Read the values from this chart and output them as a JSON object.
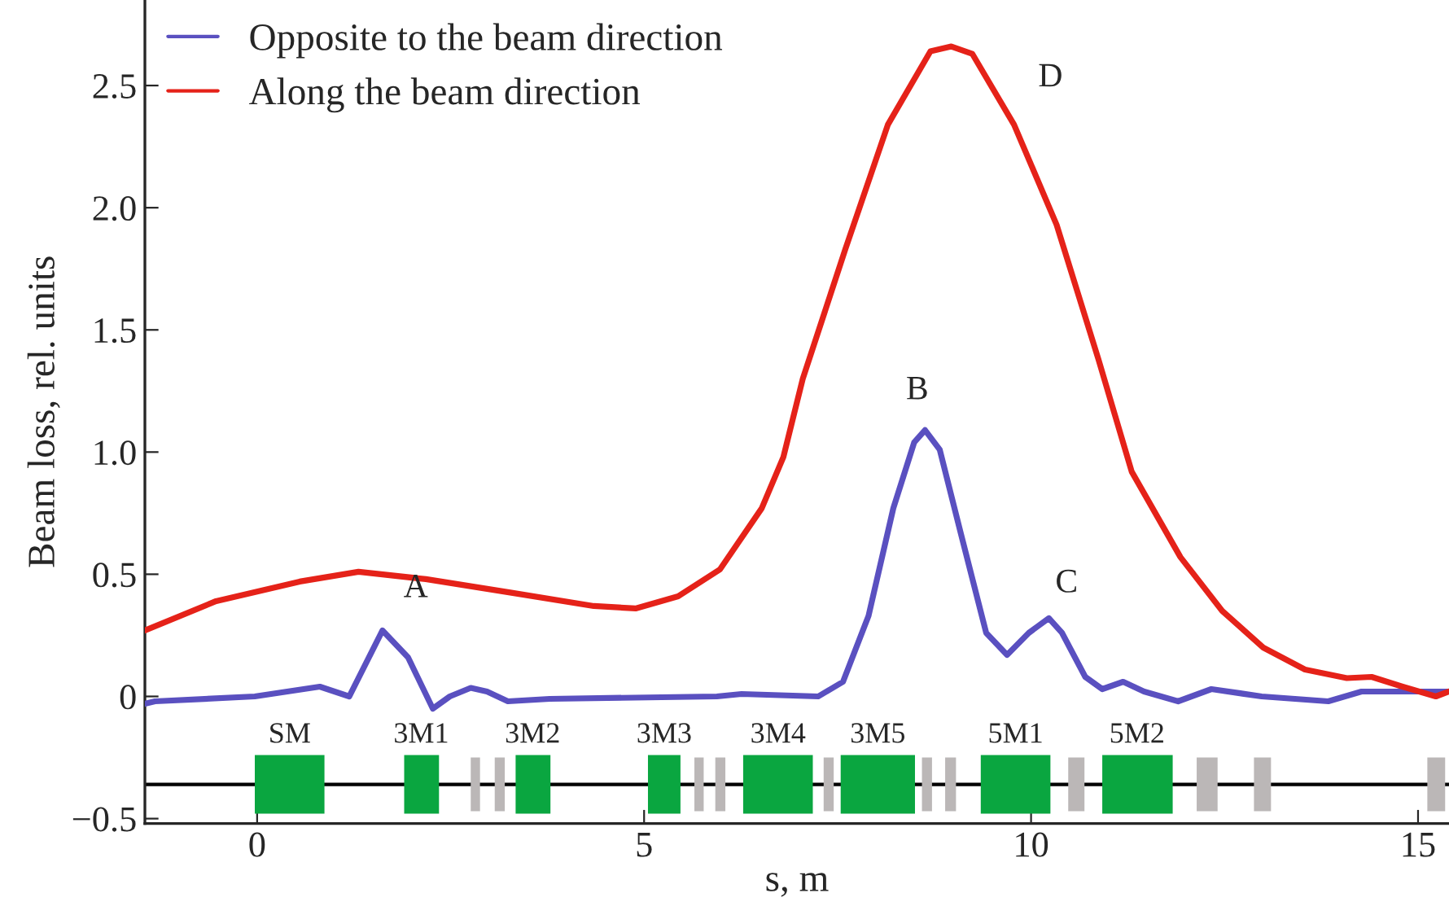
{
  "chart_data": {
    "type": "line",
    "xlabel": "s, m",
    "ylabel": "Beam loss, rel. units",
    "xlim": [
      -1.45,
      15.4
    ],
    "ylim": [
      -0.52,
      2.85
    ],
    "xticks": [
      0,
      5,
      10,
      15
    ],
    "yticks": [
      {
        "value": -0.5,
        "label": "−0.5"
      },
      {
        "value": 0,
        "label": "0"
      },
      {
        "value": 0.5,
        "label": "0.5"
      },
      {
        "value": 1.0,
        "label": "1.0"
      },
      {
        "value": 1.5,
        "label": "1.5"
      },
      {
        "value": 2.0,
        "label": "2.0"
      },
      {
        "value": 2.5,
        "label": "2.5"
      }
    ],
    "grid": false,
    "legend": "top left",
    "marker": "none",
    "line_style": "solid",
    "series": [
      {
        "name": "Opposite to the beam direction",
        "color": "#5a50c0",
        "x": [
          -1.45,
          -1.32,
          -0.03,
          0.81,
          1.19,
          1.62,
          1.95,
          2.27,
          2.49,
          2.76,
          2.97,
          3.24,
          3.78,
          5.94,
          6.26,
          7.25,
          7.57,
          7.9,
          8.22,
          8.49,
          8.63,
          8.82,
          9.09,
          9.42,
          9.69,
          9.97,
          10.23,
          10.4,
          10.7,
          10.92,
          11.19,
          11.46,
          11.9,
          12.33,
          12.98,
          13.84,
          14.27,
          15.23,
          15.4
        ],
        "values": [
          -0.03,
          -0.02,
          0.0,
          0.04,
          0.0,
          0.27,
          0.16,
          -0.05,
          0.0,
          0.035,
          0.02,
          -0.02,
          -0.01,
          0.0,
          0.01,
          0.0,
          0.06,
          0.33,
          0.77,
          1.04,
          1.09,
          1.01,
          0.67,
          0.26,
          0.17,
          0.26,
          0.32,
          0.26,
          0.08,
          0.03,
          0.06,
          0.02,
          -0.02,
          0.03,
          0.0,
          -0.02,
          0.02,
          0.02,
          0.02
        ]
      },
      {
        "name": "Along the beam direction",
        "color": "#e52219",
        "x": [
          -1.45,
          -0.53,
          0.55,
          1.31,
          2.18,
          3.27,
          4.35,
          4.89,
          5.44,
          5.98,
          6.52,
          6.8,
          7.05,
          7.6,
          8.15,
          8.7,
          8.97,
          9.24,
          9.78,
          10.33,
          10.87,
          11.3,
          11.93,
          12.47,
          13.0,
          13.54,
          14.08,
          14.4,
          14.8,
          15.23,
          15.4
        ],
        "values": [
          0.27,
          0.39,
          0.47,
          0.51,
          0.48,
          0.425,
          0.37,
          0.36,
          0.41,
          0.52,
          0.77,
          0.98,
          1.3,
          1.83,
          2.34,
          2.64,
          2.66,
          2.63,
          2.34,
          1.93,
          1.38,
          0.92,
          0.57,
          0.35,
          0.2,
          0.11,
          0.075,
          0.08,
          0.04,
          0.0,
          0.02
        ]
      }
    ],
    "ref_lines": [
      {
        "axis": "y",
        "value": -0.36,
        "color": "#000000",
        "line_style": "solid"
      }
    ],
    "annotations": [
      "A",
      "B",
      "C",
      "D",
      "SM",
      "3M1",
      "3M2",
      "3M3",
      "3M4",
      "3M5",
      "5M1",
      "5M2"
    ]
  }
}
